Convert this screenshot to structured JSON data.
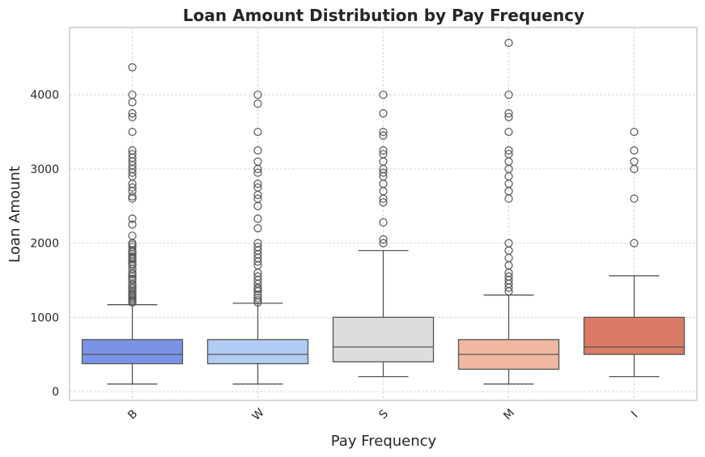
{
  "chart_data": {
    "type": "box",
    "title": "Loan Amount Distribution by Pay Frequency",
    "xlabel": "Pay Frequency",
    "ylabel": "Loan Amount",
    "ylim": [
      -120,
      4930
    ],
    "yticks": [
      0,
      1000,
      2000,
      3000,
      4000
    ],
    "grid": true,
    "categories": [
      "B",
      "W",
      "S",
      "M",
      "I"
    ],
    "colors": [
      "#7b93e6",
      "#b1cbf5",
      "#dddddd",
      "#f0b8a0",
      "#d97b66"
    ],
    "boxes": [
      {
        "category": "B",
        "whisker_low": 100,
        "q1": 375,
        "median": 500,
        "q3": 700,
        "whisker_high": 1170,
        "outliers": [
          1200,
          1220,
          1240,
          1260,
          1280,
          1300,
          1320,
          1350,
          1380,
          1400,
          1430,
          1450,
          1500,
          1520,
          1550,
          1580,
          1600,
          1650,
          1700,
          1720,
          1750,
          1780,
          1800,
          1820,
          1850,
          1880,
          1900,
          1950,
          1980,
          2000,
          2100,
          2250,
          2330,
          2600,
          2630,
          2700,
          2750,
          2800,
          2900,
          2950,
          3000,
          3050,
          3100,
          3150,
          3200,
          3250,
          3500,
          3700,
          3750,
          3900,
          4000,
          4370
        ]
      },
      {
        "category": "W",
        "whisker_low": 100,
        "q1": 375,
        "median": 500,
        "q3": 700,
        "whisker_high": 1190,
        "outliers": [
          1200,
          1230,
          1260,
          1300,
          1350,
          1380,
          1400,
          1450,
          1500,
          1550,
          1600,
          1700,
          1750,
          1800,
          1850,
          1900,
          1950,
          2000,
          2200,
          2330,
          2500,
          2600,
          2650,
          2750,
          2800,
          2950,
          3000,
          3100,
          3250,
          3500,
          3880,
          4000
        ]
      },
      {
        "category": "S",
        "whisker_low": 200,
        "q1": 400,
        "median": 600,
        "q3": 1000,
        "whisker_high": 1900,
        "outliers": [
          2000,
          2050,
          2280,
          2550,
          2600,
          2700,
          2800,
          2900,
          2950,
          3000,
          3100,
          3200,
          3250,
          3450,
          3500,
          3750,
          4000
        ]
      },
      {
        "category": "M",
        "whisker_low": 100,
        "q1": 300,
        "median": 500,
        "q3": 700,
        "whisker_high": 1300,
        "outliers": [
          1350,
          1400,
          1450,
          1500,
          1550,
          1600,
          1700,
          1800,
          1900,
          2000,
          2600,
          2700,
          2800,
          2900,
          3000,
          3100,
          3200,
          3250,
          3500,
          3700,
          3750,
          4000,
          4700
        ]
      },
      {
        "category": "I",
        "whisker_low": 200,
        "q1": 500,
        "median": 600,
        "q3": 1000,
        "whisker_high": 1560,
        "outliers": [
          2000,
          2600,
          3000,
          3100,
          3250,
          3500
        ]
      }
    ]
  }
}
